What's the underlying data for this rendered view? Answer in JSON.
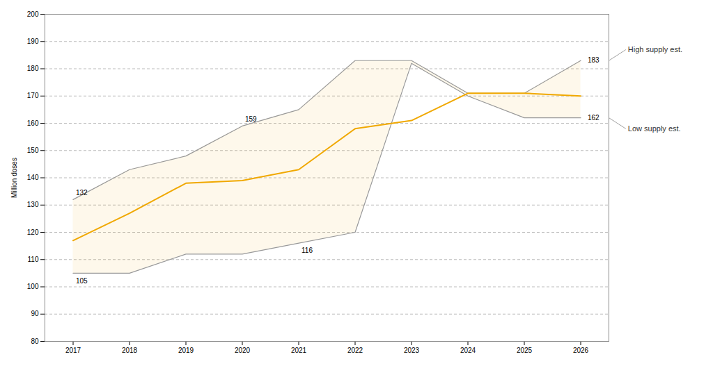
{
  "chart_data": {
    "type": "line",
    "x": [
      2017,
      2018,
      2019,
      2020,
      2021,
      2022,
      2023,
      2024,
      2025,
      2026
    ],
    "xlim": [
      2016.5,
      2026.5
    ],
    "xticks": [
      2017,
      2018,
      2019,
      2020,
      2021,
      2022,
      2023,
      2024,
      2025,
      2026
    ],
    "ylim": [
      80,
      200
    ],
    "yticks": [
      80,
      90,
      100,
      110,
      120,
      130,
      140,
      150,
      160,
      170,
      180,
      190,
      200
    ],
    "ylabel": "Million doses",
    "grid": true,
    "series": [
      {
        "name": "High supply est.",
        "color": "#999999",
        "values": [
          132,
          143,
          148,
          159,
          165,
          183,
          183,
          171,
          171,
          183
        ]
      },
      {
        "name": "Low supply est.",
        "color": "#999999",
        "values": [
          105,
          105,
          112,
          112,
          116,
          120,
          182,
          170,
          162,
          162
        ]
      },
      {
        "color": "#F0A800",
        "values": [
          117,
          127,
          138,
          139,
          143,
          158,
          161,
          171,
          171,
          170
        ]
      }
    ],
    "annotations": [
      {
        "text": "132",
        "x": 2017,
        "y": 132
      },
      {
        "text": "105",
        "x": 2017,
        "y": 105
      },
      {
        "text": "159",
        "x": 2020,
        "y": 159
      },
      {
        "text": "116",
        "x": 2021,
        "y": 116
      },
      {
        "text": "183",
        "x": 2026,
        "y": 183
      },
      {
        "text": "162",
        "x": 2026,
        "y": 162
      }
    ]
  }
}
